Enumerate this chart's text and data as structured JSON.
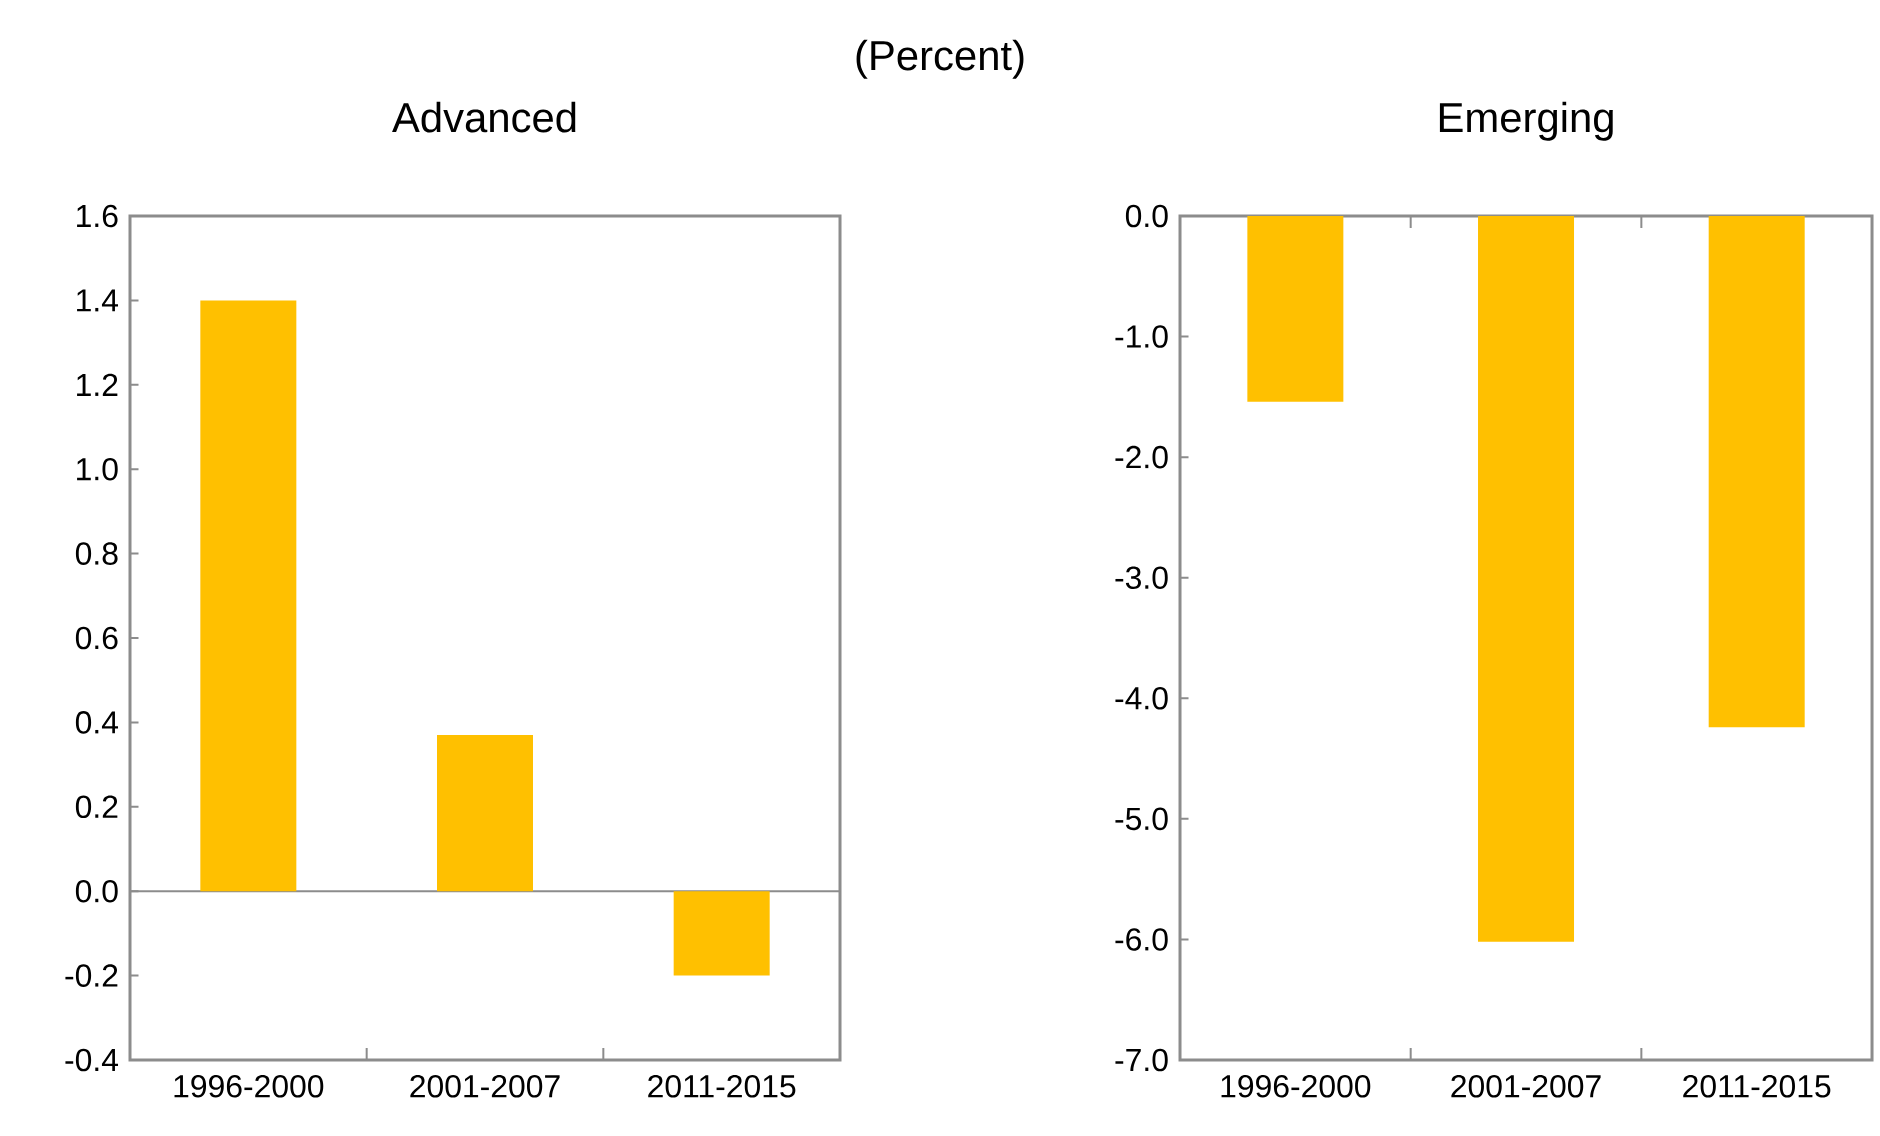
{
  "chart_data": [
    {
      "type": "bar",
      "title": "Advanced",
      "subtitle": "(Percent)",
      "categories": [
        "1996-2000",
        "2001-2007",
        "2011-2015"
      ],
      "values": [
        1.4,
        0.37,
        -0.2
      ],
      "color": "#ffc000",
      "ylim": [
        -0.4,
        1.6
      ],
      "yticks": [
        {
          "value": -0.4,
          "label": "-0.4"
        },
        {
          "value": -0.2,
          "label": "-0.2"
        },
        {
          "value": 0,
          "label": "0.0"
        },
        {
          "value": 0.2,
          "label": "0.2"
        },
        {
          "value": 0.4,
          "label": "0.4"
        },
        {
          "value": 0.6,
          "label": "0.6"
        },
        {
          "value": 0.8,
          "label": "0.8"
        },
        {
          "value": 1.0,
          "label": "1.0"
        },
        {
          "value": 1.2,
          "label": "1.2"
        },
        {
          "value": 1.4,
          "label": "1.4"
        },
        {
          "value": 1.6,
          "label": "1.6"
        }
      ]
    },
    {
      "type": "bar",
      "title": "Emerging",
      "categories": [
        "1996-2000",
        "2001-2007",
        "2011-2015"
      ],
      "values": [
        -1.54,
        -6.02,
        -4.24
      ],
      "color": "#ffc000",
      "ylim": [
        -7.0,
        0.0
      ],
      "yticks": [
        {
          "value": -7,
          "label": "-7.0"
        },
        {
          "value": -6,
          "label": "-6.0"
        },
        {
          "value": -5,
          "label": "-5.0"
        },
        {
          "value": -4,
          "label": "-4.0"
        },
        {
          "value": -3,
          "label": "-3.0"
        },
        {
          "value": -2,
          "label": "-2.0"
        },
        {
          "value": -1,
          "label": "-1.0"
        },
        {
          "value": 0,
          "label": "0.0"
        }
      ]
    }
  ]
}
